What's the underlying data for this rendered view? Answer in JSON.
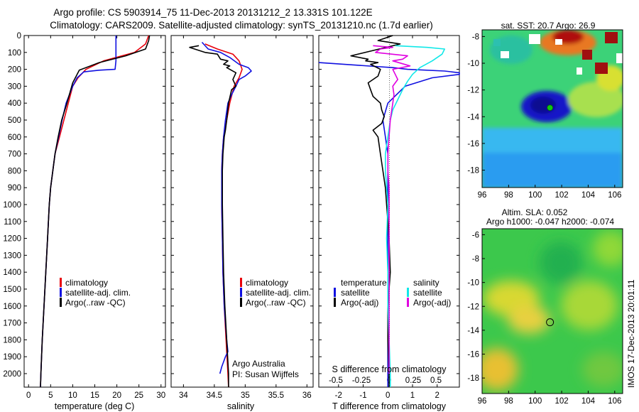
{
  "header": {
    "line1": "Argo profile: CS 5903914_75 11-Dec-2013 20131212_2 13.331S 101.122E",
    "line2": "Climatology: CARS2009. Satellite-adjusted climatology: synTS_20131210.nc (1.7d earlier)"
  },
  "colors": {
    "red": "#e8000b",
    "blue": "#1010e0",
    "black": "#000000",
    "cyan": "#10e8e8",
    "magenta": "#e000e0"
  },
  "chart_data": [
    {
      "type": "line",
      "id": "temperature-profile",
      "xlabel": "temperature (deg C)",
      "xlim": [
        -1,
        31
      ],
      "xticks": [
        0,
        5,
        10,
        15,
        20,
        25,
        30
      ],
      "ylim": [
        0,
        2080
      ],
      "yticks": [
        0,
        100,
        200,
        300,
        400,
        500,
        600,
        700,
        800,
        900,
        1000,
        1100,
        1200,
        1300,
        1400,
        1500,
        1600,
        1700,
        1800,
        1900,
        2000
      ],
      "legend": [
        "climatology",
        "satellite-adj. clim.",
        "Argo(..raw -QC)"
      ],
      "series": [
        {
          "name": "climatology",
          "color": "red",
          "points": [
            [
              27.2,
              0
            ],
            [
              26.5,
              50
            ],
            [
              24,
              100
            ],
            [
              17,
              150
            ],
            [
              13,
              200
            ],
            [
              11.2,
              250
            ],
            [
              10,
              300
            ],
            [
              9,
              400
            ],
            [
              8,
              500
            ],
            [
              7,
              600
            ],
            [
              6,
              700
            ],
            [
              5.5,
              800
            ],
            [
              5,
              900
            ],
            [
              4.7,
              1000
            ],
            [
              4.3,
              1200
            ],
            [
              3.9,
              1400
            ],
            [
              3.5,
              1600
            ],
            [
              3.1,
              1800
            ],
            [
              2.8,
              2000
            ],
            [
              2.7,
              2080
            ]
          ]
        },
        {
          "name": "satellite-adj. clim.",
          "color": "blue",
          "points": [
            [
              19.8,
              0
            ],
            [
              19.8,
              150
            ],
            [
              19.6,
              200
            ],
            [
              16,
              205
            ],
            [
              12.5,
              215
            ],
            [
              11,
              250
            ],
            [
              10,
              300
            ],
            [
              8.5,
              400
            ],
            [
              7.6,
              500
            ],
            [
              6.8,
              600
            ],
            [
              6,
              700
            ],
            [
              5.5,
              800
            ],
            [
              5,
              900
            ],
            [
              4.7,
              1000
            ],
            [
              4.3,
              1200
            ],
            [
              3.9,
              1400
            ],
            [
              3.5,
              1600
            ],
            [
              3.1,
              1800
            ],
            [
              2.8,
              2000
            ],
            [
              2.7,
              2080
            ]
          ]
        },
        {
          "name": "Argo(..raw -QC)",
          "color": "black",
          "points": [
            [
              27.4,
              0
            ],
            [
              27.2,
              30
            ],
            [
              26.5,
              80
            ],
            [
              22,
              120
            ],
            [
              16,
              160
            ],
            [
              11.5,
              205
            ],
            [
              10,
              280
            ],
            [
              8.7,
              400
            ],
            [
              7.5,
              500
            ],
            [
              6.7,
              600
            ],
            [
              6,
              700
            ],
            [
              5.5,
              800
            ],
            [
              5,
              900
            ],
            [
              4.7,
              1000
            ],
            [
              4.3,
              1200
            ],
            [
              3.9,
              1400
            ],
            [
              3.5,
              1600
            ],
            [
              3.1,
              1800
            ],
            [
              2.8,
              2000
            ],
            [
              2.7,
              2080
            ]
          ]
        }
      ]
    },
    {
      "type": "line",
      "id": "salinity-profile",
      "xlabel": "salinity",
      "xlim": [
        33.8,
        36.1
      ],
      "xticks": [
        34,
        34.5,
        35,
        35.5,
        36
      ],
      "ylim": [
        0,
        2080
      ],
      "legend": [
        "climatology",
        "satellite-adj. clim.",
        "Argo(..raw -QC)"
      ],
      "annotations": [
        "Argo Australia",
        "PI: Susan Wijffels"
      ],
      "series": [
        {
          "name": "climatology",
          "color": "red",
          "points": [
            [
              34.35,
              50
            ],
            [
              34.55,
              80
            ],
            [
              34.8,
              110
            ],
            [
              34.9,
              150
            ],
            [
              34.95,
              200
            ],
            [
              34.9,
              250
            ],
            [
              34.82,
              300
            ],
            [
              34.75,
              400
            ],
            [
              34.7,
              500
            ],
            [
              34.65,
              600
            ],
            [
              34.63,
              700
            ],
            [
              34.62,
              800
            ],
            [
              34.62,
              900
            ],
            [
              34.62,
              1000
            ],
            [
              34.63,
              1200
            ],
            [
              34.64,
              1400
            ],
            [
              34.66,
              1600
            ],
            [
              34.69,
              1800
            ],
            [
              34.72,
              2000
            ],
            [
              34.73,
              2080
            ]
          ]
        },
        {
          "name": "satellite-adj. clim.",
          "color": "blue",
          "points": [
            [
              34.3,
              40
            ],
            [
              34.4,
              80
            ],
            [
              34.6,
              100
            ],
            [
              34.75,
              130
            ],
            [
              34.9,
              170
            ],
            [
              35.05,
              190
            ],
            [
              35.1,
              210
            ],
            [
              35,
              240
            ],
            [
              34.9,
              260
            ],
            [
              34.85,
              300
            ],
            [
              34.78,
              350
            ],
            [
              34.72,
              400
            ],
            [
              34.68,
              500
            ],
            [
              34.65,
              600
            ],
            [
              34.63,
              700
            ],
            [
              34.62,
              800
            ],
            [
              34.62,
              900
            ],
            [
              34.62,
              1000
            ],
            [
              34.63,
              1200
            ],
            [
              34.64,
              1400
            ],
            [
              34.66,
              1600
            ],
            [
              34.7,
              1800
            ],
            [
              34.72,
              1870
            ],
            [
              34.68,
              1900
            ],
            [
              34.62,
              1960
            ],
            [
              34.59,
              2000
            ]
          ]
        },
        {
          "name": "Argo(..raw -QC)",
          "color": "black",
          "points": [
            [
              34.25,
              60
            ],
            [
              34.1,
              70
            ],
            [
              34.35,
              100
            ],
            [
              34.55,
              110
            ],
            [
              34.6,
              140
            ],
            [
              34.72,
              150
            ],
            [
              34.65,
              170
            ],
            [
              34.75,
              180
            ],
            [
              34.7,
              190
            ],
            [
              34.85,
              220
            ],
            [
              34.8,
              260
            ],
            [
              34.85,
              300
            ],
            [
              34.78,
              320
            ],
            [
              34.73,
              400
            ],
            [
              34.7,
              500
            ],
            [
              34.68,
              560
            ],
            [
              34.66,
              600
            ],
            [
              34.64,
              700
            ],
            [
              34.63,
              800
            ],
            [
              34.63,
              900
            ],
            [
              34.63,
              1000
            ],
            [
              34.64,
              1200
            ],
            [
              34.65,
              1400
            ],
            [
              34.67,
              1600
            ],
            [
              34.7,
              1800
            ],
            [
              34.73,
              2000
            ],
            [
              34.73,
              2080
            ]
          ]
        }
      ]
    },
    {
      "type": "line",
      "id": "difference-profile",
      "xlabel": "T difference from climatology",
      "xlabel2": "S difference from climatology",
      "xlim": [
        -2.8,
        2.9
      ],
      "xticks": [
        -2,
        -1,
        0,
        1,
        2
      ],
      "xticks2": [
        "-0.5",
        "-0.25",
        "0",
        "0.25",
        "0.5"
      ],
      "ylim": [
        0,
        2080
      ],
      "legend": {
        "temperature": [
          "satellite",
          "Argo(-adj)"
        ],
        "salinity": [
          "satellite",
          "Argo(-adj)"
        ]
      },
      "legend_headings": [
        "temperature",
        "salinity"
      ],
      "series": [
        {
          "name": "satellite",
          "color": "blue",
          "points": [
            [
              -2.8,
              160
            ],
            [
              0.2,
              190
            ],
            [
              0.8,
              200
            ],
            [
              2.3,
              210
            ],
            [
              2.9,
              220
            ],
            [
              2.9,
              230
            ],
            [
              1.8,
              250
            ],
            [
              0.7,
              300
            ],
            [
              0,
              400
            ],
            [
              -0.2,
              500
            ],
            [
              -0.1,
              600
            ],
            [
              0,
              700
            ],
            [
              0,
              1000
            ],
            [
              0,
              1400
            ],
            [
              0,
              1800
            ],
            [
              0,
              2080
            ]
          ]
        },
        {
          "name": "Argo(-adj)",
          "color": "black",
          "points": [
            [
              0.2,
              0
            ],
            [
              -0.4,
              30
            ],
            [
              0.5,
              50
            ],
            [
              -1.5,
              120
            ],
            [
              -0.8,
              140
            ],
            [
              -0.9,
              150
            ],
            [
              -0.4,
              160
            ],
            [
              -0.7,
              170
            ],
            [
              -0.3,
              200
            ],
            [
              -0.4,
              240
            ],
            [
              -0.8,
              280
            ],
            [
              -0.7,
              320
            ],
            [
              -0.6,
              360
            ],
            [
              -0.3,
              400
            ],
            [
              -0.25,
              440
            ],
            [
              -0.15,
              480
            ],
            [
              -0.25,
              520
            ],
            [
              -0.6,
              560
            ],
            [
              -0.4,
              600
            ],
            [
              -0.3,
              700
            ],
            [
              -0.2,
              800
            ],
            [
              -0.1,
              900
            ],
            [
              -0.05,
              1000
            ],
            [
              0.05,
              1200
            ],
            [
              0.1,
              1400
            ],
            [
              0.0,
              1600
            ],
            [
              0.0,
              1800
            ],
            [
              0.05,
              2000
            ],
            [
              0.05,
              2080
            ]
          ]
        },
        {
          "name": "satellite",
          "color": "cyan",
          "points": [
            [
              0.3,
              60
            ],
            [
              1.6,
              70
            ],
            [
              2.3,
              80
            ],
            [
              2.2,
              110
            ],
            [
              1.8,
              150
            ],
            [
              1.3,
              190
            ],
            [
              1.0,
              230
            ],
            [
              0.8,
              270
            ],
            [
              0.6,
              320
            ],
            [
              0.4,
              380
            ],
            [
              0.2,
              440
            ],
            [
              0.1,
              500
            ],
            [
              0.0,
              600
            ],
            [
              -0.1,
              700
            ],
            [
              -0.1,
              800
            ],
            [
              -0.05,
              900
            ],
            [
              0,
              1000
            ],
            [
              -0.05,
              1200
            ],
            [
              0.0,
              1400
            ],
            [
              0.0,
              1600
            ],
            [
              0.05,
              1800
            ],
            [
              0.1,
              2000
            ],
            [
              0.1,
              2080
            ]
          ]
        },
        {
          "name": "Argo(-adj)",
          "color": "magenta",
          "points": [
            [
              -0.6,
              60
            ],
            [
              0.2,
              70
            ],
            [
              -0.3,
              80
            ],
            [
              -0.5,
              100
            ],
            [
              0.8,
              120
            ],
            [
              0.6,
              140
            ],
            [
              0.2,
              150
            ],
            [
              0.9,
              180
            ],
            [
              0.2,
              200
            ],
            [
              0.3,
              230
            ],
            [
              0.4,
              260
            ],
            [
              0.2,
              300
            ],
            [
              0.25,
              350
            ],
            [
              0.2,
              400
            ],
            [
              0.1,
              500
            ],
            [
              0.05,
              600
            ],
            [
              0.0,
              700
            ],
            [
              0.0,
              800
            ],
            [
              0.05,
              900
            ],
            [
              0.05,
              1000
            ],
            [
              0.05,
              1200
            ],
            [
              0.05,
              1400
            ],
            [
              0.05,
              1600
            ],
            [
              0.05,
              1800
            ],
            [
              0.05,
              2000
            ]
          ]
        }
      ]
    },
    {
      "type": "heatmap",
      "id": "sst-map",
      "title": "sat. SST: 20.7  Argo: 26.9",
      "xlim": [
        96,
        106.6
      ],
      "ylim": [
        -19.3,
        -7.5
      ],
      "xticks": [
        96,
        98,
        100,
        102,
        104,
        106
      ],
      "yticks": [
        -8,
        -10,
        -12,
        -14,
        -16,
        -18
      ],
      "marker": [
        101.12,
        -13.33
      ],
      "marker_color": "#10c810"
    },
    {
      "type": "heatmap",
      "id": "sla-map",
      "title": "Altim. SLA: 0.052",
      "subtitle": "Argo h1000: -0.047 h2000: -0.074",
      "xlim": [
        96,
        106.6
      ],
      "ylim": [
        -19.3,
        -5.5
      ],
      "xticks": [
        96,
        98,
        100,
        102,
        104,
        106
      ],
      "yticks": [
        -6,
        -8,
        -10,
        -12,
        -14,
        -16,
        -18
      ],
      "marker": [
        101.12,
        -13.33
      ],
      "credit": "IMOS 17-Dec-2013 20:01:11"
    }
  ]
}
